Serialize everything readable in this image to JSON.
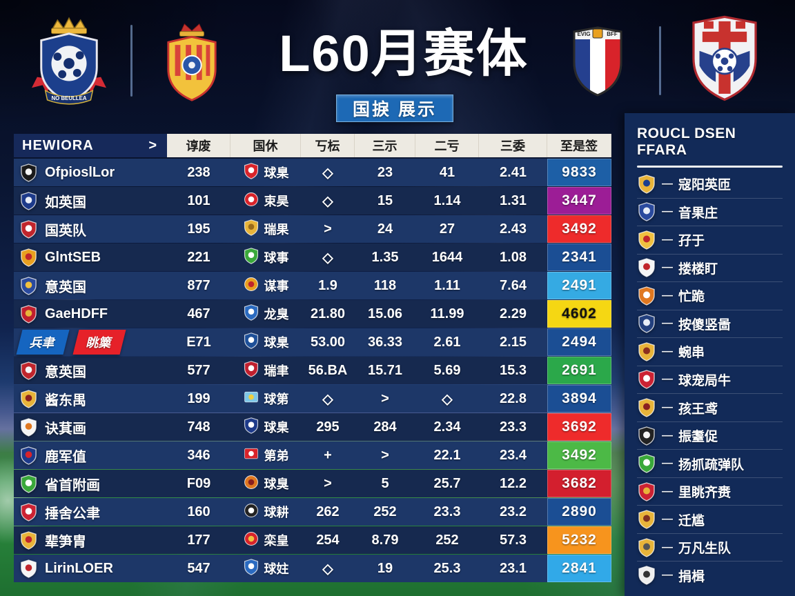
{
  "theme": {
    "subtitle_bg": "#1d69b5",
    "thead_name_bg": "#16295a",
    "thead_bg": "#edeae2",
    "row_light": "#1d3768",
    "row_dark": "#16294f",
    "panel_bg": "#122a58",
    "button_blue": "#1565c0",
    "button_red": "#e62129"
  },
  "header": {
    "title": "L60月赛体",
    "subtitle": "国捩 展示",
    "crests": [
      {
        "name": "blue-crown-club-crest"
      },
      {
        "name": "gold-crown-club-crest"
      },
      {
        "name": "tricolor-shield-crest"
      },
      {
        "name": "red-cross-ball-crest"
      }
    ]
  },
  "table": {
    "name_header": "HEWIORA",
    "name_header_arrow": ">",
    "columns": [
      "谆废",
      "国休",
      "丂枟",
      "三示",
      "二亏",
      "三委",
      "至是签"
    ],
    "rows": [
      {
        "team": "OfpioslLor",
        "crest": {
          "name": "black-white-shield-icon",
          "shape": "shield",
          "c1": "#1a1a1a",
          "c2": "#f5f5f5"
        },
        "c1": "238",
        "icon": {
          "name": "red-stripe-shield-icon",
          "shape": "shield",
          "c1": "#d8232a",
          "c2": "#ffffff"
        },
        "icon_label": "球臬",
        "c3": "◇",
        "c4": "23",
        "c5": "41",
        "c6": "2.41",
        "badge": {
          "value": "9833",
          "bg": "#1d5fa6",
          "fg": "#ffffff"
        }
      },
      {
        "team": "如英国",
        "crest": {
          "name": "blue-ball-crest-icon",
          "shape": "shield",
          "c1": "#1d3a8a",
          "c2": "#e8eef8"
        },
        "c1": "101",
        "icon": {
          "name": "red-circle-badge-icon",
          "shape": "circle",
          "c1": "#d8232a",
          "c2": "#ffffff"
        },
        "icon_label": "束昊",
        "c3": "◇",
        "c4": "15",
        "c5": "1.14",
        "c6": "1.31",
        "badge": {
          "value": "3447",
          "bg": "#9c1d96",
          "fg": "#ffffff"
        }
      },
      {
        "team": "国英队",
        "crest": {
          "name": "red-white-shield-icon",
          "shape": "shield",
          "c1": "#c0252c",
          "c2": "#ffffff"
        },
        "c1": "195",
        "icon": {
          "name": "gold-crown-crest-icon",
          "shape": "shield",
          "c1": "#e8b43a",
          "c2": "#9a6a1a"
        },
        "icon_label": "瑞果",
        "c3": ">",
        "c4": "24",
        "c5": "27",
        "c6": "2.43",
        "badge": {
          "value": "3492",
          "bg": "#ee2b2b",
          "fg": "#ffffff"
        }
      },
      {
        "team": "GlntSEB",
        "crest": {
          "name": "gold-red-stripe-crest-icon",
          "shape": "shield",
          "c1": "#e8a020",
          "c2": "#c0252c"
        },
        "c1": "221",
        "icon": {
          "name": "green-check-shield-icon",
          "shape": "shield",
          "c1": "#3aa83a",
          "c2": "#ffffff"
        },
        "icon_label": "球事",
        "c3": "◇",
        "c4": "1.35",
        "c5": "1644",
        "c6": "1.08",
        "badge": {
          "value": "2341",
          "bg": "#1b4e94",
          "fg": "#ffffff"
        }
      },
      {
        "team": "意英国",
        "crest": {
          "name": "blue-gold-crest-icon",
          "shape": "shield",
          "c1": "#2a4a9e",
          "c2": "#f0c040"
        },
        "c1": "877",
        "icon": {
          "name": "orange-circle-badge-icon",
          "shape": "circle",
          "c1": "#e8a020",
          "c2": "#c0252c"
        },
        "icon_label": "谋事",
        "c3": "1.9",
        "c4": "118",
        "c5": "1.11",
        "c6": "7.64",
        "badge": {
          "value": "2491",
          "bg": "#35aae3",
          "fg": "#ffffff"
        }
      },
      {
        "team": "GaeHDFF",
        "crest": {
          "name": "red-crest-icon",
          "shape": "shield",
          "c1": "#c01f2e",
          "c2": "#e8b43a"
        },
        "c1": "467",
        "icon": {
          "name": "blue-cross-shield-icon",
          "shape": "shield",
          "c1": "#2a6ac0",
          "c2": "#ffffff"
        },
        "icon_label": "龙臭",
        "c3": "21.80",
        "c4": "15.06",
        "c5": "11.99",
        "c6": "2.29",
        "badge": {
          "value": "4602",
          "bg": "#f5d713",
          "fg": "#111111"
        }
      },
      {
        "team_buttons": [
          {
            "label": "兵聿",
            "name": "blue-filter-button"
          },
          {
            "label": "眺篥",
            "name": "red-filter-button"
          }
        ],
        "c1": "E71",
        "icon": {
          "name": "blue-shield-badge-icon",
          "shape": "shield",
          "c1": "#1d4f98",
          "c2": "#ffffff"
        },
        "icon_label": "球臬",
        "c3": "53.00",
        "c4": "36.33",
        "c5": "2.61",
        "c6": "2.15",
        "badge": {
          "value": "2494",
          "bg": "#1b4e94",
          "fg": "#ffffff"
        }
      },
      {
        "team": "意英国",
        "crest": {
          "name": "red-white-crest-icon",
          "shape": "shield",
          "c1": "#c0252c",
          "c2": "#f5f5f5"
        },
        "c1": "577",
        "icon": {
          "name": "red-shield-badge-icon",
          "shape": "shield",
          "c1": "#c01f2e",
          "c2": "#ffffff"
        },
        "icon_label": "瑞聿",
        "c3": "56.BA",
        "c4": "15.71",
        "c5": "5.69",
        "c6": "15.3",
        "badge": {
          "value": "2691",
          "bg": "#2ba84a",
          "fg": "#ffffff"
        }
      },
      {
        "team": "酱东禺",
        "crest": {
          "name": "gold-crown-crest-icon",
          "shape": "shield",
          "c1": "#e8b43a",
          "c2": "#8a1f1f"
        },
        "c1": "199",
        "icon": {
          "name": "lightblue-flag-icon",
          "shape": "flag",
          "c1": "#7ec8e8",
          "c2": "#f0d040"
        },
        "icon_label": "球第",
        "c3": "◇",
        "c4": ">",
        "c5": "◇",
        "c6": "22.8",
        "badge": {
          "value": "3894",
          "bg": "#1b4e94",
          "fg": "#ffffff"
        }
      },
      {
        "team": "诀萁画",
        "crest": {
          "name": "white-orange-crest-icon",
          "shape": "shield",
          "c1": "#f5f5f5",
          "c2": "#e07820"
        },
        "c1": "748",
        "icon": {
          "name": "tricolor-shield-icon",
          "shape": "shield",
          "c1": "#1d3a8a",
          "c2": "#ffffff"
        },
        "icon_label": "球臬",
        "c3": "295",
        "c4": "284",
        "c5": "2.34",
        "c6": "23.3",
        "badge": {
          "value": "3692",
          "bg": "#ee2b2b",
          "fg": "#ffffff"
        }
      },
      {
        "team": "鹿军值",
        "crest": {
          "name": "france-flag-crest-icon",
          "shape": "shield",
          "c1": "#1d3a8a",
          "c2": "#d8232a"
        },
        "c1": "346",
        "icon": {
          "name": "red-square-badge-icon",
          "shape": "flag",
          "c1": "#d8232a",
          "c2": "#ffffff"
        },
        "icon_label": "第弟",
        "c3": "+",
        "c4": ">",
        "c5": "22.1",
        "c6": "23.4",
        "badge": {
          "value": "3492",
          "bg": "#4cb946",
          "fg": "#ffffff"
        }
      },
      {
        "team": "省首附画",
        "crest": {
          "name": "green-check-shield-icon",
          "shape": "shield",
          "c1": "#3aa83a",
          "c2": "#ffffff"
        },
        "c1": "F09",
        "icon": {
          "name": "orange-crest-badge-icon",
          "shape": "circle",
          "c1": "#e07820",
          "c2": "#8a1f1f"
        },
        "icon_label": "球臭",
        "c3": ">",
        "c4": "5",
        "c5": "25.7",
        "c6": "12.2",
        "badge": {
          "value": "3682",
          "bg": "#d31f2e",
          "fg": "#ffffff"
        }
      },
      {
        "team": "捶舍公聿",
        "crest": {
          "name": "red-crest-icon",
          "shape": "shield",
          "c1": "#cc2233",
          "c2": "#ffffff"
        },
        "c1": "160",
        "icon": {
          "name": "black-white-circle-icon",
          "shape": "circle",
          "c1": "#222222",
          "c2": "#ffffff"
        },
        "icon_label": "球耕",
        "c3": "262",
        "c4": "252",
        "c5": "23.3",
        "c6": "23.2",
        "badge": {
          "value": "2890",
          "bg": "#1b4e94",
          "fg": "#ffffff"
        }
      },
      {
        "team": "辈笋胄",
        "crest": {
          "name": "gold-red-crest-icon",
          "shape": "shield",
          "c1": "#e8b43a",
          "c2": "#c0252c"
        },
        "c1": "177",
        "icon": {
          "name": "red-gold-heart-icon",
          "shape": "circle",
          "c1": "#d8232a",
          "c2": "#f0c040"
        },
        "icon_label": "栾皇",
        "c3": "254",
        "c4": "8.79",
        "c5": "252",
        "c6": "57.3",
        "badge": {
          "value": "5232",
          "bg": "#f7941d",
          "fg": "#ffffff"
        }
      },
      {
        "team": "LirinLOER",
        "crest": {
          "name": "white-red-cross-crest-icon",
          "shape": "shield",
          "c1": "#f5f5f5",
          "c2": "#c0252c"
        },
        "c1": "547",
        "icon": {
          "name": "blue-bolt-shield-icon",
          "shape": "shield",
          "c1": "#2a6ac0",
          "c2": "#ffffff"
        },
        "icon_label": "球妵",
        "c3": "◇",
        "c4": "19",
        "c5": "25.3",
        "c6": "23.1",
        "badge": {
          "value": "2841",
          "bg": "#31a9e8",
          "fg": "#ffffff"
        }
      }
    ]
  },
  "sidebar": {
    "title": "ROUCL DSEN FFARA",
    "dash": "—",
    "items": [
      {
        "label": "寇阳英匝",
        "icon": {
          "name": "gold-crown-crest-icon",
          "shape": "shield",
          "c1": "#e8b43a",
          "c2": "#1a3f8f"
        }
      },
      {
        "label": "音果庄",
        "icon": {
          "name": "blue-ball-crest-icon",
          "shape": "shield",
          "c1": "#2a4a9e",
          "c2": "#e8eef8"
        }
      },
      {
        "label": "孖于",
        "icon": {
          "name": "gold-red-crest-icon",
          "shape": "shield",
          "c1": "#f0c040",
          "c2": "#c0252c"
        }
      },
      {
        "label": "搂楼盯",
        "icon": {
          "name": "white-red-cross-crest-icon",
          "shape": "shield",
          "c1": "#f5f5f5",
          "c2": "#c0252c"
        }
      },
      {
        "label": "忙跪",
        "icon": {
          "name": "orange-white-crest-icon",
          "shape": "shield",
          "c1": "#e07820",
          "c2": "#ffffff"
        }
      },
      {
        "label": "按傻竖啚",
        "icon": {
          "name": "navy-ball-crest-icon",
          "shape": "shield",
          "c1": "#23407e",
          "c2": "#e8eef8"
        }
      },
      {
        "label": "蜿串",
        "icon": {
          "name": "gold-crest-icon",
          "shape": "shield",
          "c1": "#e8b43a",
          "c2": "#8b2f1f"
        }
      },
      {
        "label": "球宠局牛",
        "icon": {
          "name": "red-white-crest-icon",
          "shape": "shield",
          "c1": "#cc2233",
          "c2": "#ffffff"
        }
      },
      {
        "label": "孩王鸢",
        "icon": {
          "name": "gold-crown-crest-icon",
          "shape": "shield",
          "c1": "#e8b43a",
          "c2": "#8a1f1f"
        }
      },
      {
        "label": "振耋促",
        "icon": {
          "name": "black-white-crest-icon",
          "shape": "shield",
          "c1": "#222222",
          "c2": "#f5f5f5"
        }
      },
      {
        "label": "扬抓疏弹队",
        "icon": {
          "name": "green-check-shield-icon",
          "shape": "shield",
          "c1": "#3aa83a",
          "c2": "#ffffff"
        }
      },
      {
        "label": "里眺齐赉",
        "icon": {
          "name": "red-gold-crest-icon",
          "shape": "shield",
          "c1": "#cc2233",
          "c2": "#e8b43a"
        }
      },
      {
        "label": "迁尴",
        "icon": {
          "name": "gold-crest-icon",
          "shape": "shield",
          "c1": "#e8b43a",
          "c2": "#803020"
        }
      },
      {
        "label": "万凡生队",
        "icon": {
          "name": "gold-crest-icon",
          "shape": "shield",
          "c1": "#e8b43a",
          "c2": "#555555"
        }
      },
      {
        "label": "捐楫",
        "icon": {
          "name": "white-dark-crest-icon",
          "shape": "shield",
          "c1": "#eeeeee",
          "c2": "#333333"
        }
      }
    ]
  }
}
